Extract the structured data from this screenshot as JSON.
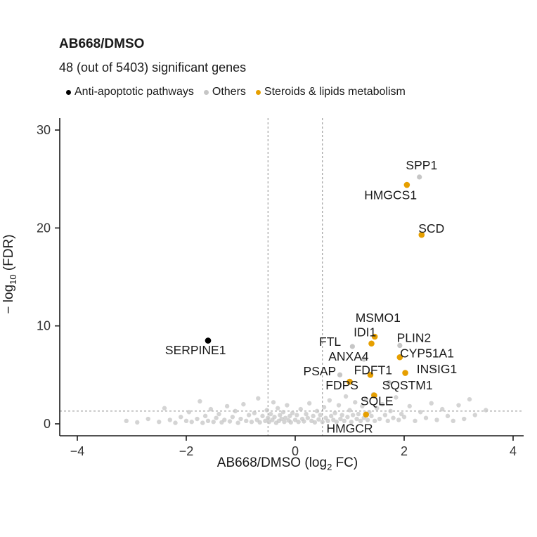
{
  "title": "AB668/DMSO",
  "subtitle": "48 (out of 5403) significant genes",
  "legend": {
    "items": [
      {
        "label": "Anti-apoptotic pathways",
        "color": "#000000"
      },
      {
        "label": "Others",
        "color": "#C6C6C6"
      },
      {
        "label": "Steroids & lipids metabolism",
        "color": "#E69F00"
      }
    ]
  },
  "axes": {
    "x": {
      "label_prefix": "AB668/DMSO (log",
      "label_sub": "2",
      "label_suffix": " FC)",
      "ticks": [
        -4,
        -2,
        0,
        2,
        4
      ],
      "range": [
        -4.3,
        4.3
      ]
    },
    "y": {
      "label_prefix": "− log",
      "label_sub": "10",
      "label_suffix": " (FDR)",
      "ticks": [
        0,
        10,
        20,
        30
      ],
      "range": [
        -0.9,
        31.2
      ]
    }
  },
  "chart_data": {
    "type": "scatter",
    "title": "AB668/DMSO",
    "subtitle": "48 (out of 5403) significant genes",
    "xlabel": "AB668/DMSO (log2 FC)",
    "ylabel": "-log10 (FDR)",
    "xlim": [
      -4.3,
      4.3
    ],
    "ylim": [
      -0.9,
      31.2
    ],
    "grid": false,
    "legend_position": "top",
    "thresholds": {
      "x": [
        -0.5,
        0.5
      ],
      "y": 1.3
    },
    "category_colors": {
      "anti_apoptotic": "#000000",
      "others": "#C6C6C6",
      "steroids": "#E69F00"
    },
    "labeled_genes": [
      {
        "name": "SPP1",
        "x": 2.28,
        "y": 25.2,
        "label_x": 2.32,
        "label_y": 26.4,
        "category": "others"
      },
      {
        "name": "HMGCS1",
        "x": 2.05,
        "y": 24.4,
        "label_x": 1.75,
        "label_y": 23.35,
        "category": "steroids"
      },
      {
        "name": "SCD",
        "x": 2.32,
        "y": 19.3,
        "label_x": 2.5,
        "label_y": 19.95,
        "category": "steroids"
      },
      {
        "name": "MSMO1",
        "x": 1.46,
        "y": 8.9,
        "label_x": 1.52,
        "label_y": 10.85,
        "category": "steroids"
      },
      {
        "name": "IDI1",
        "x": 1.4,
        "y": 8.2,
        "label_x": 1.28,
        "label_y": 9.35,
        "category": "steroids"
      },
      {
        "name": "PLIN2",
        "x": 1.92,
        "y": 8.0,
        "label_x": 2.18,
        "label_y": 8.8,
        "category": "others"
      },
      {
        "name": "FTL",
        "x": 1.05,
        "y": 7.9,
        "label_x": 0.64,
        "label_y": 8.4,
        "category": "others"
      },
      {
        "name": "ANXA4",
        "x": 1.26,
        "y": 6.6,
        "label_x": 0.98,
        "label_y": 6.9,
        "category": "others"
      },
      {
        "name": "CYP51A1",
        "x": 1.92,
        "y": 6.8,
        "label_x": 2.42,
        "label_y": 7.2,
        "category": "steroids"
      },
      {
        "name": "PSAP",
        "x": 0.82,
        "y": 5.0,
        "label_x": 0.45,
        "label_y": 5.4,
        "category": "others"
      },
      {
        "name": "FDFT1",
        "x": 1.38,
        "y": 5.0,
        "label_x": 1.43,
        "label_y": 5.5,
        "category": "steroids"
      },
      {
        "name": "INSIG1",
        "x": 2.02,
        "y": 5.2,
        "label_x": 2.6,
        "label_y": 5.6,
        "category": "steroids"
      },
      {
        "name": "FDPS",
        "x": 1.0,
        "y": 4.3,
        "label_x": 0.86,
        "label_y": 3.95,
        "category": "steroids"
      },
      {
        "name": "SQSTM1",
        "x": 1.72,
        "y": 4.2,
        "label_x": 2.06,
        "label_y": 3.95,
        "category": "others"
      },
      {
        "name": "SQLE",
        "x": 1.45,
        "y": 2.9,
        "label_x": 1.5,
        "label_y": 2.35,
        "category": "steroids"
      },
      {
        "name": "HMGCR",
        "x": 1.3,
        "y": 0.95,
        "label_x": 1.0,
        "label_y": -0.45,
        "category": "steroids"
      },
      {
        "name": "SERPINE1",
        "x": -1.6,
        "y": 8.5,
        "label_x": -1.83,
        "label_y": 7.55,
        "category": "anti_apoptotic"
      }
    ],
    "background_points": [
      [
        -3.1,
        0.3
      ],
      [
        -2.9,
        0.15
      ],
      [
        -2.7,
        0.5
      ],
      [
        -2.5,
        0.2
      ],
      [
        -2.4,
        1.6
      ],
      [
        -2.3,
        0.4
      ],
      [
        -2.2,
        0.1
      ],
      [
        -2.1,
        0.7
      ],
      [
        -2.0,
        0.3
      ],
      [
        -1.95,
        1.2
      ],
      [
        -1.9,
        0.2
      ],
      [
        -1.8,
        0.5
      ],
      [
        -1.75,
        2.3
      ],
      [
        -1.7,
        0.1
      ],
      [
        -1.65,
        0.8
      ],
      [
        -1.6,
        0.3
      ],
      [
        -1.55,
        1.5
      ],
      [
        -1.5,
        0.2
      ],
      [
        -1.45,
        0.6
      ],
      [
        -1.4,
        1.0
      ],
      [
        -1.35,
        0.15
      ],
      [
        -1.3,
        0.4
      ],
      [
        -1.25,
        1.8
      ],
      [
        -1.2,
        0.25
      ],
      [
        -1.15,
        0.7
      ],
      [
        -1.1,
        1.3
      ],
      [
        -1.05,
        0.1
      ],
      [
        -1.0,
        0.5
      ],
      [
        -0.95,
        2.0
      ],
      [
        -0.9,
        0.3
      ],
      [
        -0.85,
        0.9
      ],
      [
        -0.8,
        0.2
      ],
      [
        -0.75,
        1.1
      ],
      [
        -0.7,
        0.4
      ],
      [
        -0.68,
        2.6
      ],
      [
        -0.65,
        0.15
      ],
      [
        -0.6,
        0.8
      ],
      [
        -0.55,
        0.3
      ],
      [
        -0.52,
        1.4
      ],
      [
        -0.5,
        0.6
      ],
      [
        -0.48,
        0.2
      ],
      [
        -0.45,
        1.0
      ],
      [
        -0.42,
        0.4
      ],
      [
        -0.4,
        2.2
      ],
      [
        -0.38,
        0.7
      ],
      [
        -0.35,
        0.1
      ],
      [
        -0.32,
        1.6
      ],
      [
        -0.3,
        0.3
      ],
      [
        -0.28,
        0.9
      ],
      [
        -0.25,
        0.5
      ],
      [
        -0.22,
        1.2
      ],
      [
        -0.2,
        0.2
      ],
      [
        -0.18,
        0.6
      ],
      [
        -0.15,
        1.9
      ],
      [
        -0.12,
        0.35
      ],
      [
        -0.1,
        0.8
      ],
      [
        -0.08,
        0.15
      ],
      [
        -0.05,
        1.1
      ],
      [
        0.0,
        0.4
      ],
      [
        0.03,
        0.9
      ],
      [
        0.06,
        0.2
      ],
      [
        0.1,
        1.5
      ],
      [
        0.13,
        0.5
      ],
      [
        0.16,
        0.25
      ],
      [
        0.2,
        1.0
      ],
      [
        0.23,
        0.6
      ],
      [
        0.26,
        2.1
      ],
      [
        0.3,
        0.3
      ],
      [
        0.33,
        0.8
      ],
      [
        0.36,
        0.15
      ],
      [
        0.4,
        1.3
      ],
      [
        0.43,
        0.45
      ],
      [
        0.46,
        0.9
      ],
      [
        0.5,
        0.2
      ],
      [
        0.53,
        1.7
      ],
      [
        0.56,
        0.6
      ],
      [
        0.6,
        0.3
      ],
      [
        0.63,
        2.4
      ],
      [
        0.66,
        0.8
      ],
      [
        0.7,
        0.4
      ],
      [
        0.73,
        1.1
      ],
      [
        0.76,
        0.2
      ],
      [
        0.8,
        1.9
      ],
      [
        0.83,
        0.5
      ],
      [
        0.86,
        0.9
      ],
      [
        0.9,
        0.3
      ],
      [
        0.93,
        2.8
      ],
      [
        0.96,
        0.7
      ],
      [
        1.0,
        1.4
      ],
      [
        1.03,
        0.2
      ],
      [
        1.06,
        0.9
      ],
      [
        1.1,
        2.2
      ],
      [
        1.13,
        0.5
      ],
      [
        1.16,
        1.0
      ],
      [
        1.2,
        0.3
      ],
      [
        1.23,
        1.8
      ],
      [
        1.26,
        0.6
      ],
      [
        1.3,
        2.5
      ],
      [
        1.33,
        0.4
      ],
      [
        1.36,
        1.2
      ],
      [
        1.4,
        0.8
      ],
      [
        1.43,
        3.0
      ],
      [
        1.46,
        0.3
      ],
      [
        1.5,
        1.6
      ],
      [
        1.55,
        0.5
      ],
      [
        1.6,
        2.0
      ],
      [
        1.65,
        0.9
      ],
      [
        1.7,
        0.3
      ],
      [
        1.75,
        1.3
      ],
      [
        1.8,
        0.6
      ],
      [
        1.85,
        2.7
      ],
      [
        1.9,
        0.4
      ],
      [
        1.95,
        1.0
      ],
      [
        2.0,
        0.7
      ],
      [
        2.1,
        1.8
      ],
      [
        2.2,
        0.3
      ],
      [
        2.3,
        1.2
      ],
      [
        2.4,
        0.6
      ],
      [
        2.5,
        2.1
      ],
      [
        2.55,
        5.6
      ],
      [
        2.6,
        0.4
      ],
      [
        2.7,
        1.5
      ],
      [
        2.8,
        0.8
      ],
      [
        2.9,
        0.3
      ],
      [
        3.0,
        1.9
      ],
      [
        3.1,
        0.5
      ],
      [
        3.2,
        2.5
      ],
      [
        3.3,
        0.9
      ],
      [
        3.5,
        1.4
      ]
    ]
  }
}
